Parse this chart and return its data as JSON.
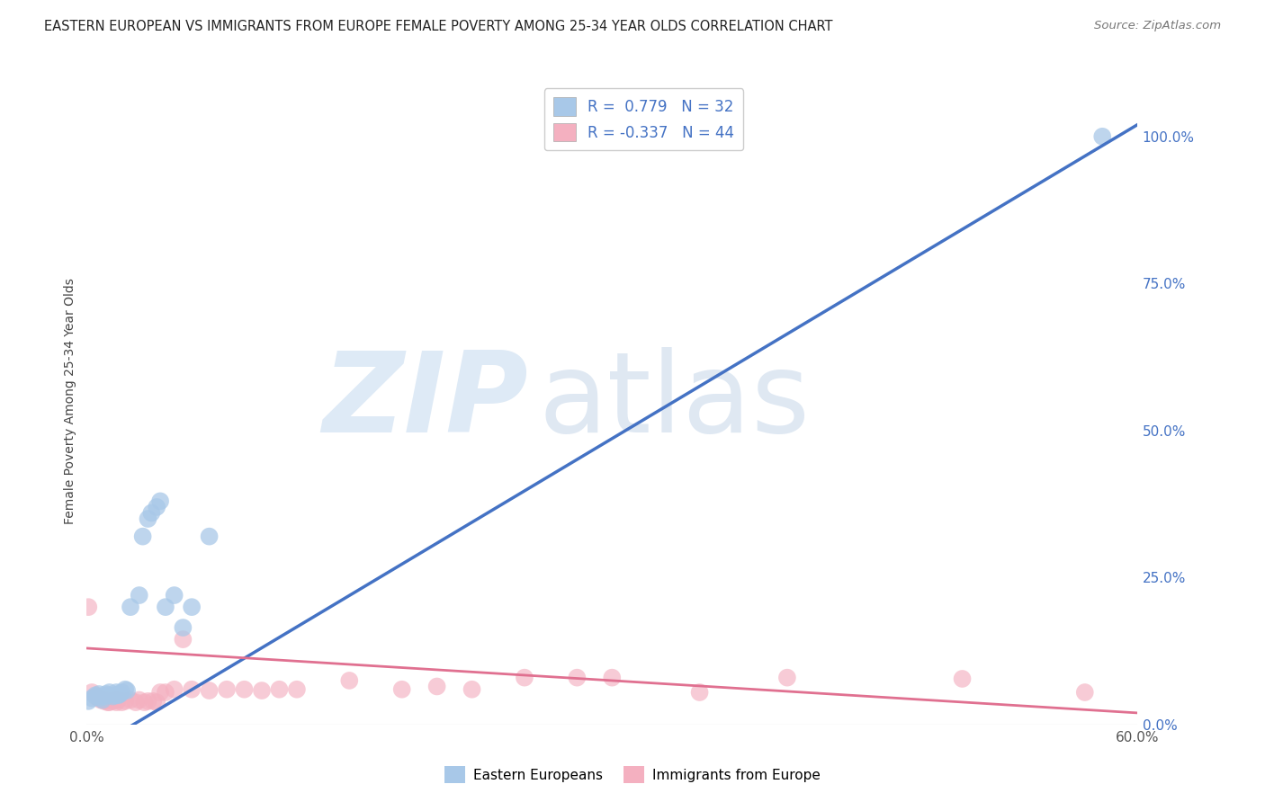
{
  "title": "EASTERN EUROPEAN VS IMMIGRANTS FROM EUROPE FEMALE POVERTY AMONG 25-34 YEAR OLDS CORRELATION CHART",
  "source": "Source: ZipAtlas.com",
  "ylabel": "Female Poverty Among 25-34 Year Olds",
  "xlim": [
    0.0,
    0.6
  ],
  "ylim": [
    0.0,
    1.1
  ],
  "yticks_right": [
    0.0,
    0.25,
    0.5,
    0.75,
    1.0
  ],
  "ytick_right_labels": [
    "0.0%",
    "25.0%",
    "50.0%",
    "75.0%",
    "100.0%"
  ],
  "watermark_zip": "ZIP",
  "watermark_atlas": "atlas",
  "legend_r1": "R =  0.779   N = 32",
  "legend_r2": "R = -0.337   N = 44",
  "color_blue": "#A8C8E8",
  "color_pink": "#F4B0C0",
  "line_blue": "#4472C4",
  "line_pink": "#E07090",
  "blue_x": [
    0.001,
    0.003,
    0.005,
    0.006,
    0.007,
    0.008,
    0.009,
    0.01,
    0.011,
    0.012,
    0.013,
    0.015,
    0.016,
    0.017,
    0.018,
    0.019,
    0.02,
    0.022,
    0.023,
    0.025,
    0.03,
    0.032,
    0.035,
    0.037,
    0.04,
    0.042,
    0.045,
    0.05,
    0.055,
    0.06,
    0.07,
    0.58
  ],
  "blue_y": [
    0.04,
    0.045,
    0.05,
    0.048,
    0.052,
    0.046,
    0.042,
    0.048,
    0.052,
    0.05,
    0.055,
    0.048,
    0.05,
    0.055,
    0.05,
    0.052,
    0.055,
    0.06,
    0.058,
    0.2,
    0.22,
    0.32,
    0.35,
    0.36,
    0.37,
    0.38,
    0.2,
    0.22,
    0.165,
    0.2,
    0.32,
    1.0
  ],
  "pink_x": [
    0.001,
    0.003,
    0.005,
    0.007,
    0.008,
    0.01,
    0.011,
    0.012,
    0.013,
    0.015,
    0.016,
    0.017,
    0.018,
    0.02,
    0.022,
    0.025,
    0.028,
    0.03,
    0.033,
    0.035,
    0.038,
    0.04,
    0.042,
    0.045,
    0.05,
    0.055,
    0.06,
    0.07,
    0.08,
    0.09,
    0.1,
    0.11,
    0.12,
    0.15,
    0.18,
    0.2,
    0.22,
    0.25,
    0.28,
    0.3,
    0.35,
    0.4,
    0.5,
    0.57
  ],
  "pink_y": [
    0.2,
    0.055,
    0.048,
    0.045,
    0.042,
    0.04,
    0.042,
    0.038,
    0.038,
    0.04,
    0.042,
    0.038,
    0.042,
    0.038,
    0.04,
    0.042,
    0.038,
    0.042,
    0.038,
    0.04,
    0.04,
    0.038,
    0.055,
    0.055,
    0.06,
    0.145,
    0.06,
    0.058,
    0.06,
    0.06,
    0.058,
    0.06,
    0.06,
    0.075,
    0.06,
    0.065,
    0.06,
    0.08,
    0.08,
    0.08,
    0.055,
    0.08,
    0.078,
    0.055
  ],
  "dot_size": 200,
  "grid_color": "#CCCCCC",
  "background_color": "#FFFFFF",
  "title_fontsize": 10.5,
  "axis_label_fontsize": 10,
  "blue_line_x": [
    -0.01,
    0.6
  ],
  "blue_line_y": [
    -0.065,
    1.02
  ],
  "pink_line_x": [
    0.0,
    0.6
  ],
  "pink_line_y": [
    0.13,
    0.02
  ]
}
